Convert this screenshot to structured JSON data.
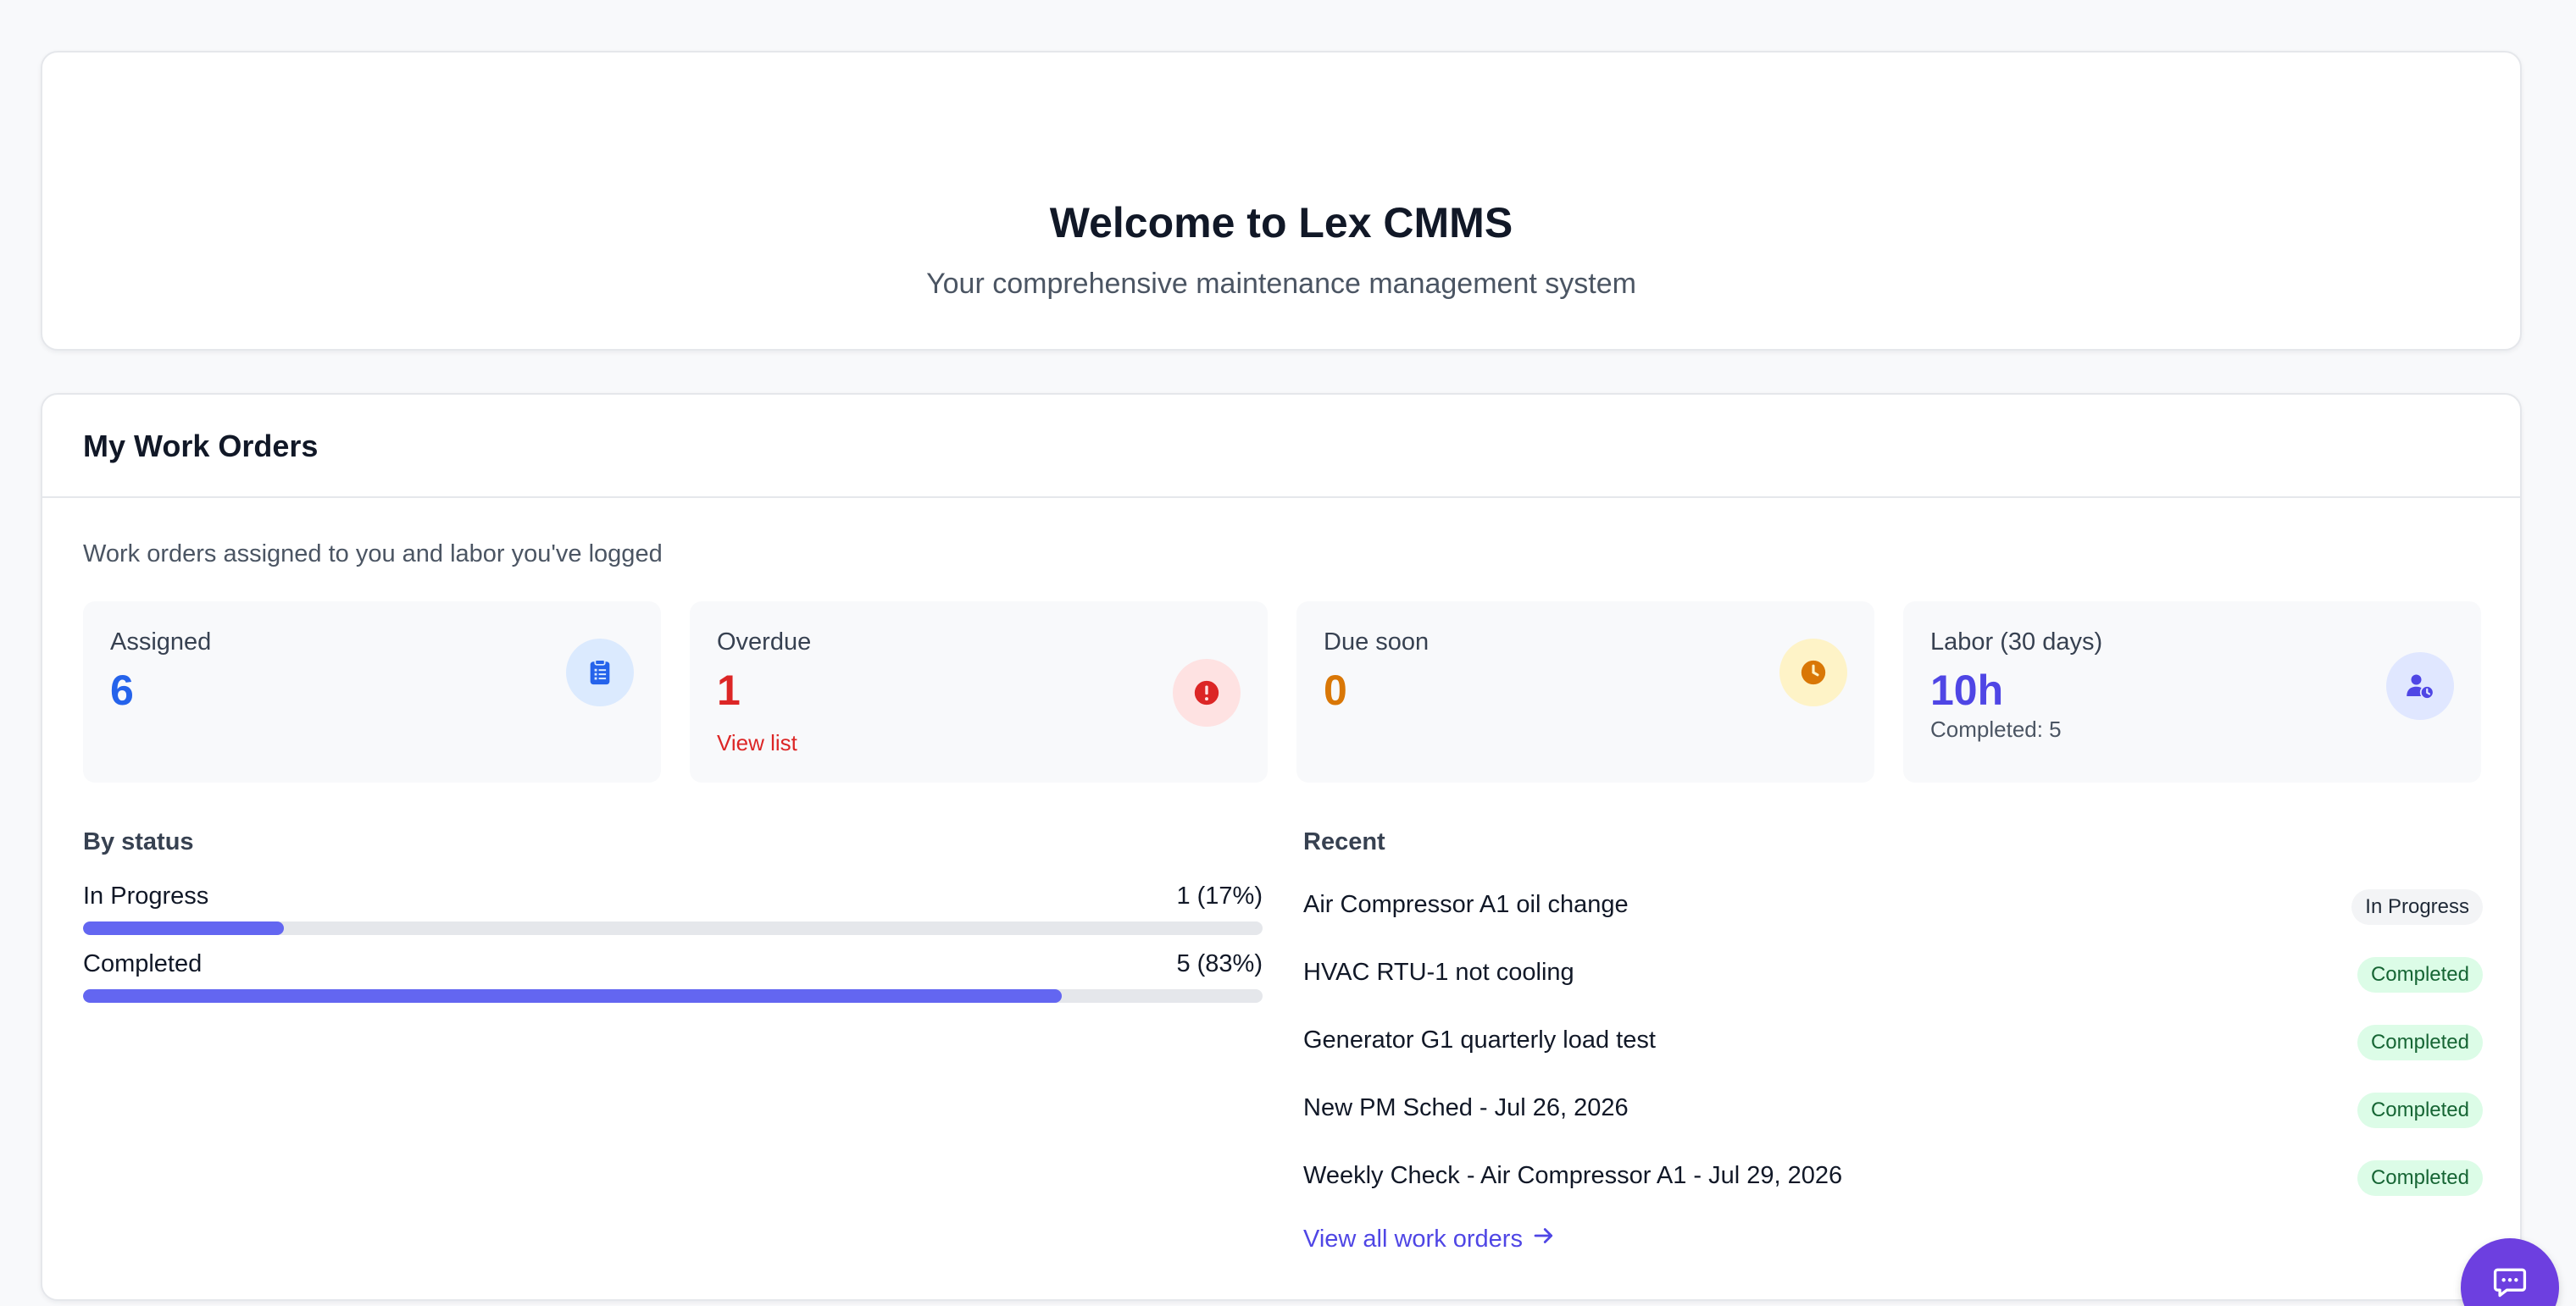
{
  "welcome": {
    "title": "Welcome to Lex CMMS",
    "subtitle": "Your comprehensive maintenance management system"
  },
  "work_orders": {
    "title": "My Work Orders",
    "description": "Work orders assigned to you and labor you've logged",
    "stats": {
      "assigned": {
        "label": "Assigned",
        "value": "6",
        "icon": "clipboard-list-icon",
        "color": "#2563eb",
        "icon_bg": "#dbeafe"
      },
      "overdue": {
        "label": "Overdue",
        "value": "1",
        "link": "View list",
        "icon": "alert-circle-icon",
        "color": "#dc2626",
        "icon_bg": "#fee2e2"
      },
      "due_soon": {
        "label": "Due soon",
        "value": "0",
        "icon": "clock-icon",
        "color": "#d97706",
        "icon_bg": "#fef3c7"
      },
      "labor": {
        "label": "Labor (30 days)",
        "value": "10h",
        "sub": "Completed: 5",
        "icon": "user-clock-icon",
        "color": "#4f46e5",
        "icon_bg": "#e0e7ff"
      }
    },
    "by_status": {
      "title": "By status",
      "items": [
        {
          "label": "In Progress",
          "value": "1 (17%)",
          "fraction": 0.17
        },
        {
          "label": "Completed",
          "value": "5 (83%)",
          "fraction": 0.83
        }
      ]
    },
    "recent": {
      "title": "Recent",
      "items": [
        {
          "title": "Air Compressor A1 oil change",
          "status": "In Progress"
        },
        {
          "title": "HVAC RTU-1 not cooling",
          "status": "Completed"
        },
        {
          "title": "Generator G1 quarterly load test",
          "status": "Completed"
        },
        {
          "title": "New PM Sched - Jul 26, 2026",
          "status": "Completed"
        },
        {
          "title": "Weekly Check - Air Compressor A1 - Jul 29, 2026",
          "status": "Completed"
        }
      ],
      "view_all": "View all work orders"
    }
  },
  "colors": {
    "accent": "#6366f1",
    "link": "#4f46e5",
    "chat_button": "#6d3fe0"
  },
  "chat": {
    "icon": "chat-icon"
  }
}
